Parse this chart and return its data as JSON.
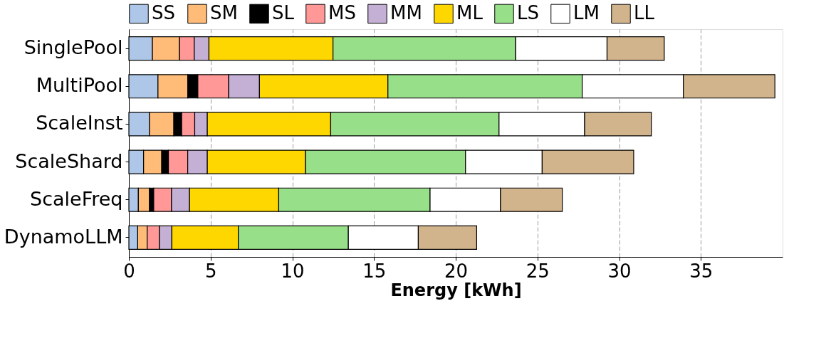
{
  "chart_data": {
    "type": "bar",
    "orientation": "horizontal",
    "stacked": true,
    "xlabel": "Energy [kWh]",
    "categories": [
      "SinglePool",
      "MultiPool",
      "ScaleInst",
      "ScaleShard",
      "ScaleFreq",
      "DynamoLLM"
    ],
    "series": [
      {
        "name": "SS",
        "color": "#aec7e8",
        "values": [
          1.44,
          1.78,
          1.26,
          0.9,
          0.58,
          0.54
        ]
      },
      {
        "name": "SM",
        "color": "#ffbb78",
        "values": [
          1.66,
          1.82,
          1.49,
          1.11,
          0.68,
          0.58
        ]
      },
      {
        "name": "SL",
        "color": "#000000",
        "values": [
          null,
          0.62,
          0.48,
          0.41,
          0.26,
          null
        ]
      },
      {
        "name": "MS",
        "color": "#ff9896",
        "values": [
          0.9,
          1.89,
          0.8,
          1.18,
          1.09,
          0.75
        ]
      },
      {
        "name": "MM",
        "color": "#c5b0d5",
        "values": [
          0.9,
          1.88,
          0.77,
          1.2,
          1.1,
          0.76
        ]
      },
      {
        "name": "ML",
        "color": "#ffd700",
        "values": [
          7.59,
          7.86,
          7.55,
          6.01,
          5.46,
          4.07
        ]
      },
      {
        "name": "LS",
        "color": "#98df8a",
        "values": [
          11.18,
          11.89,
          10.3,
          9.79,
          9.26,
          6.73
        ]
      },
      {
        "name": "LM",
        "color": "#ffffff",
        "values": [
          5.59,
          6.19,
          5.24,
          4.69,
          4.31,
          4.28
        ]
      },
      {
        "name": "LL",
        "color": "#d2b48c",
        "values": [
          3.5,
          5.6,
          4.08,
          5.6,
          3.78,
          3.57
        ]
      }
    ],
    "xlim": [
      0,
      40
    ],
    "xticks": [
      0,
      5,
      10,
      15,
      20,
      25,
      30,
      35
    ],
    "grid": "x",
    "legend": "top"
  }
}
